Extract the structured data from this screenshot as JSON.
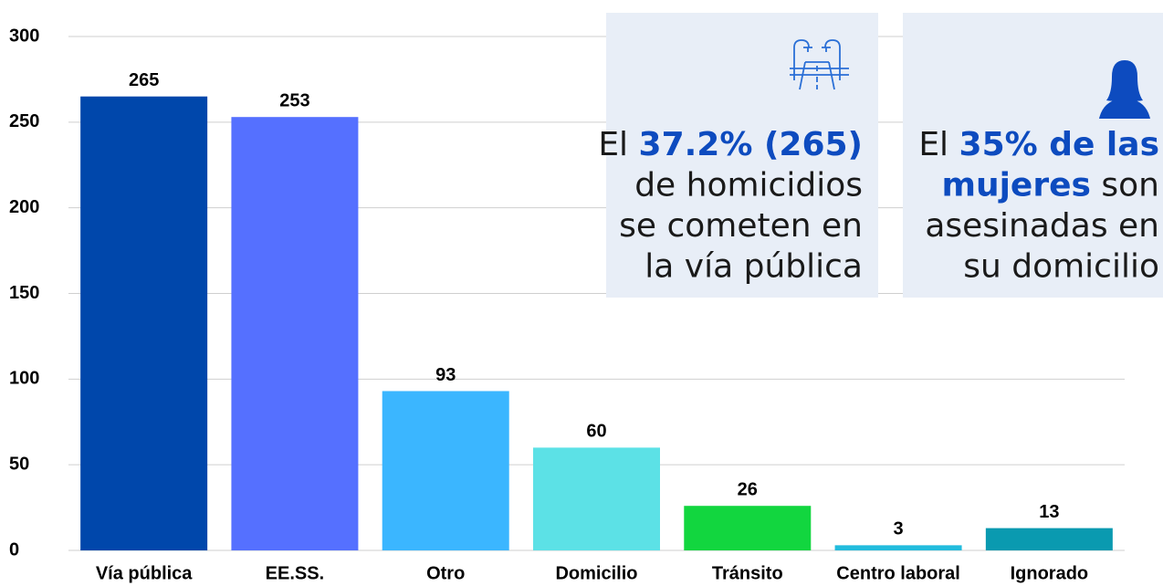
{
  "chart_data": {
    "type": "bar",
    "categories": [
      "Vía pública",
      "EE.SS.",
      "Otro",
      "Domicilio",
      "Tránsito",
      "Centro laboral",
      "Ignorado"
    ],
    "values": [
      265,
      253,
      93,
      60,
      26,
      3,
      13
    ],
    "colors": [
      "#0047ab",
      "#5570ff",
      "#3bb6ff",
      "#5ce1e6",
      "#12d63f",
      "#22bcdd",
      "#0a9ab0"
    ],
    "ylim": [
      0,
      300
    ],
    "yticks": [
      0,
      50,
      100,
      150,
      200,
      250,
      300
    ],
    "grid": true,
    "annotations": [
      {
        "lines": [
          [
            {
              "text": "El ",
              "emphasis": false
            },
            {
              "text": "37.2% (265)",
              "emphasis": true
            }
          ],
          [
            {
              "text": "de homicidios",
              "emphasis": false
            }
          ],
          [
            {
              "text": "se cometen en",
              "emphasis": false
            }
          ],
          [
            {
              "text": "la vía pública",
              "emphasis": false
            }
          ]
        ]
      },
      {
        "lines": [
          [
            {
              "text": "El ",
              "emphasis": false
            },
            {
              "text": "35% de las",
              "emphasis": true
            }
          ],
          [
            {
              "text": "mujeres",
              "emphasis": true
            },
            {
              "text": " son",
              "emphasis": false
            }
          ],
          [
            {
              "text": "asesinadas en",
              "emphasis": false
            }
          ],
          [
            {
              "text": "su domicilio",
              "emphasis": false
            }
          ]
        ]
      }
    ]
  }
}
